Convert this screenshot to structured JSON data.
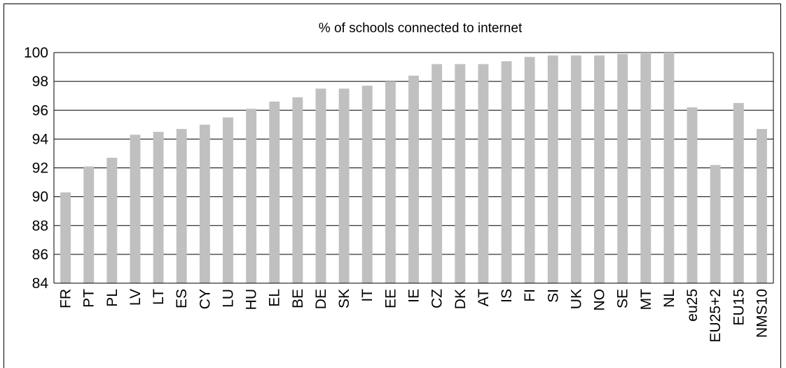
{
  "chart_data": {
    "type": "bar",
    "title": "% of schools connected to internet",
    "xlabel": "",
    "ylabel": "",
    "ylim": [
      84,
      100
    ],
    "yticks": [
      84,
      86,
      88,
      90,
      92,
      94,
      96,
      98,
      100
    ],
    "grid": "horizontal",
    "bar_color": "#c0c0c0",
    "categories": [
      "FR",
      "PT",
      "PL",
      "LV",
      "LT",
      "ES",
      "CY",
      "LU",
      "HU",
      "EL",
      "BE",
      "DE",
      "SK",
      "IT",
      "EE",
      "IE",
      "CZ",
      "DK",
      "AT",
      "IS",
      "FI",
      "SI",
      "UK",
      "NO",
      "SE",
      "MT",
      "NL",
      "eu25",
      "EU25+2",
      "EU15",
      "NMS10"
    ],
    "values": [
      90.3,
      92.1,
      92.7,
      94.3,
      94.5,
      94.7,
      95.0,
      95.5,
      96.1,
      96.6,
      96.9,
      97.5,
      97.5,
      97.7,
      98.0,
      98.4,
      99.2,
      99.2,
      99.2,
      99.4,
      99.7,
      99.8,
      99.8,
      99.8,
      99.9,
      100,
      100,
      96.2,
      92.2,
      96.5,
      94.7
    ]
  }
}
